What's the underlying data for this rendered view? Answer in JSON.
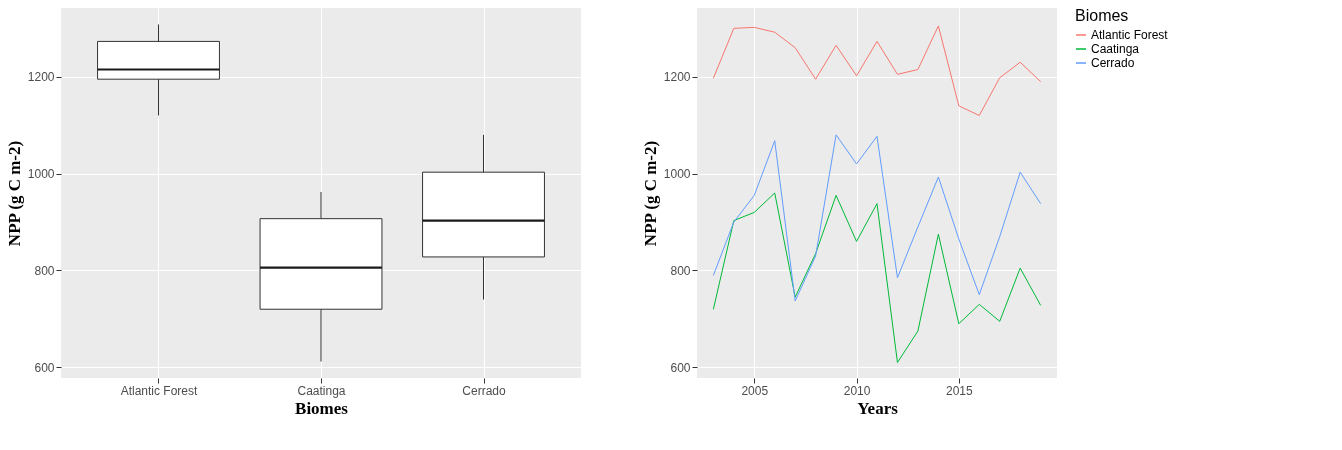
{
  "chart_data": [
    {
      "type": "box",
      "xlabel": "Biomes",
      "ylabel": "NPP (g C m-2)",
      "categories": [
        "Atlantic Forest",
        "Caatinga",
        "Cerrado"
      ],
      "boxes": [
        {
          "low": 1120,
          "q1": 1195,
          "median": 1215,
          "q3": 1273,
          "high": 1308
        },
        {
          "low": 612,
          "q1": 720,
          "median": 806,
          "q3": 907,
          "high": 962
        },
        {
          "low": 740,
          "q1": 828,
          "median": 903,
          "q3": 1003,
          "high": 1080
        }
      ],
      "ylim": [
        578,
        1342
      ],
      "yticks": [
        600,
        800,
        1000,
        1200
      ],
      "grid": true
    },
    {
      "type": "line",
      "xlabel": "Years",
      "ylabel": "NPP (g C m-2)",
      "legend_title": "Biomes",
      "legend": "right",
      "grid": true,
      "x": [
        2003,
        2004,
        2005,
        2006,
        2007,
        2008,
        2009,
        2010,
        2011,
        2012,
        2013,
        2014,
        2015,
        2016,
        2017,
        2018,
        2019
      ],
      "series": [
        {
          "name": "Atlantic Forest",
          "color": "#f8766d",
          "values": [
            1197,
            1300,
            1302,
            1292,
            1260,
            1195,
            1265,
            1202,
            1273,
            1205,
            1215,
            1305,
            1140,
            1120,
            1198,
            1230,
            1190
          ]
        },
        {
          "name": "Caatinga",
          "color": "#00ba38",
          "values": [
            720,
            903,
            920,
            960,
            745,
            835,
            955,
            860,
            938,
            610,
            675,
            875,
            690,
            730,
            695,
            805,
            728
          ]
        },
        {
          "name": "Cerrado",
          "color": "#619cff",
          "values": [
            790,
            900,
            955,
            1068,
            737,
            830,
            1080,
            1020,
            1077,
            785,
            890,
            993,
            865,
            750,
            870,
            1003,
            938
          ]
        }
      ],
      "xlim": [
        2002.2,
        2019.8
      ],
      "xticks": [
        2005,
        2010,
        2015
      ],
      "ylim": [
        578,
        1342
      ],
      "yticks": [
        600,
        800,
        1000,
        1200
      ],
      "line_style": "solid",
      "marker": "none"
    }
  ]
}
